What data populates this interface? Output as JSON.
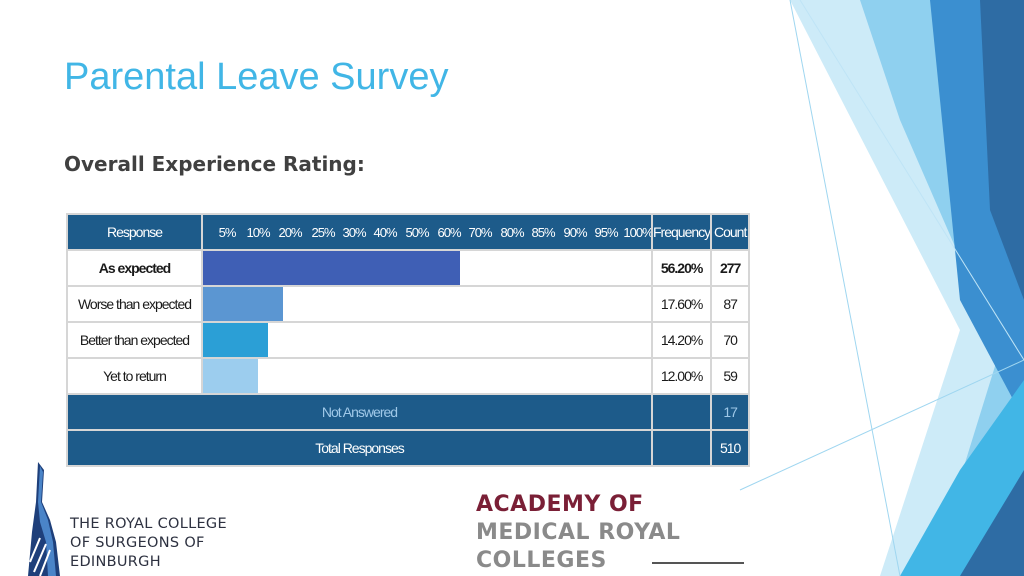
{
  "header": {
    "title": "Parental Leave Survey",
    "subtitle": "Overall Experience Rating:"
  },
  "chart_data": {
    "type": "bar",
    "orientation": "horizontal",
    "columns": {
      "response": "Response",
      "frequency": "Frequency",
      "count": "Count"
    },
    "ticks": [
      "5%",
      "10%",
      "20%",
      "25%",
      "30%",
      "40%",
      "50%",
      "60%",
      "70%",
      "80%",
      "85%",
      "90%",
      "95%",
      "100%"
    ],
    "xlim": [
      0,
      100
    ],
    "rows": [
      {
        "label": "As expected",
        "value": 56.2,
        "frequency": "56.20%",
        "count": "277",
        "color": "#3f5fb5",
        "bold": true
      },
      {
        "label": "Worse than expected",
        "value": 17.6,
        "frequency": "17.60%",
        "count": "87",
        "color": "#5b96d2",
        "bold": false
      },
      {
        "label": "Better than expected",
        "value": 14.2,
        "frequency": "14.20%",
        "count": "70",
        "color": "#2b9fd6",
        "bold": false
      },
      {
        "label": "Yet to return",
        "value": 12.0,
        "frequency": "12.00%",
        "count": "59",
        "color": "#9ccdee",
        "bold": false
      }
    ],
    "not_answered": {
      "label": "Not Answered",
      "count": "17"
    },
    "total": {
      "label": "Total Responses",
      "count": "510"
    }
  },
  "logos": {
    "rcs": {
      "lines": [
        "THE ROYAL COLLEGE",
        "OF SURGEONS OF",
        "EDINBURGH"
      ]
    },
    "amrc": {
      "lines": [
        "ACADEMY OF",
        "MEDICAL ROYAL",
        "COLLEGES"
      ]
    }
  },
  "colors": {
    "accent": "#41b6e6",
    "table_header": "#1d5b8a",
    "deco_dark": "#2e6ca4",
    "deco_mid": "#3b8fd0",
    "deco_light": "#8fd0ef"
  }
}
